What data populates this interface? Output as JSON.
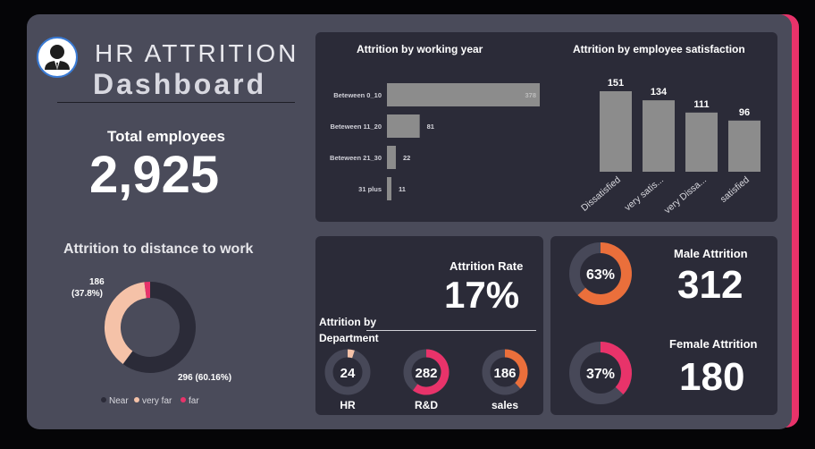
{
  "header": {
    "title_line1": "HR ATTRITION",
    "title_line2": "Dashboard",
    "logo_icon": "employee-avatar-icon"
  },
  "total": {
    "label": "Total employees",
    "value": "2,925"
  },
  "kpi": {
    "rate_label": "Attrition Rate",
    "rate_value": "17%",
    "male_label": "Male Attrition",
    "male_value": "312",
    "female_label": "Female Attrition",
    "female_value": "180"
  },
  "colors": {
    "board": "#4a4b5a",
    "panel": "#2b2b38",
    "bar": "#8c8c8c",
    "accent_pink": "#e8336a",
    "accent_orange": "#ea6f3b",
    "light_peach": "#f5c2a8",
    "dark_ring": "#474858"
  },
  "chart_data": [
    {
      "type": "bar",
      "orientation": "horizontal",
      "title": "Attrition by working year",
      "categories": [
        "Beteween 0_10",
        "Beteween 11_20",
        "Beteween 21_30",
        "31 plus"
      ],
      "values": [
        378,
        81,
        22,
        11
      ],
      "value_labels": [
        "378",
        "81",
        "22",
        "11"
      ],
      "xlim": [
        0,
        378
      ],
      "grid": false
    },
    {
      "type": "bar",
      "title": "Attrition by employee satisfaction",
      "categories": [
        "Dissatisfied",
        "very satis...",
        "very Dissa...",
        "satisfied"
      ],
      "values": [
        151,
        134,
        111,
        96
      ],
      "value_labels": [
        "151",
        "134",
        "111",
        "96"
      ],
      "ylim": [
        0,
        151
      ],
      "grid": false
    },
    {
      "type": "pie",
      "style": "donut",
      "title": "Attrition to distance to work",
      "slices": [
        {
          "name": "Near",
          "value": 60.16,
          "color": "#2b2b38"
        },
        {
          "name": "very far",
          "value": 37.8,
          "color": "#f5c2a8"
        },
        {
          "name": "far",
          "value": 2.04,
          "color": "#e8336a"
        }
      ],
      "data_labels": {
        "top": "186",
        "top_pct": "(37.8%)",
        "bottom": "296 (60.16%)"
      },
      "legend": [
        "Near",
        "very far",
        "far"
      ],
      "legend_placement": "bottom"
    },
    {
      "type": "pie",
      "style": "donut",
      "title": "Attrition by Department",
      "title_line1": "Attrition by",
      "title_line2": "Department",
      "items": [
        {
          "name": "HR",
          "value": 24,
          "fraction": 0.05,
          "color": "#f5c2a8",
          "label": "24"
        },
        {
          "name": "R&D",
          "value": 282,
          "fraction": 0.6,
          "color": "#e8336a",
          "label": "282"
        },
        {
          "name": "sales",
          "value": 186,
          "fraction": 0.38,
          "color": "#ea6f3b",
          "label": "186"
        }
      ]
    },
    {
      "type": "pie",
      "style": "donut",
      "title": "Male Attrition",
      "fraction": 0.63,
      "label": "63%",
      "color": "#ea6f3b"
    },
    {
      "type": "pie",
      "style": "donut",
      "title": "Female Attrition",
      "fraction": 0.37,
      "label": "37%",
      "color": "#e8336a"
    }
  ]
}
